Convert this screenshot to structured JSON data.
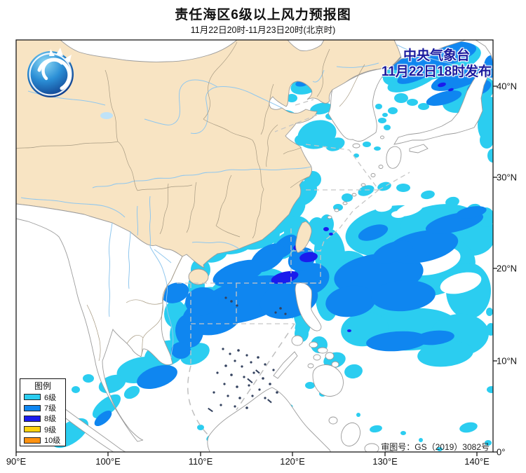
{
  "header": {
    "title": "责任海区6级以上风力预报图",
    "subtitle": "11月22日20时-11月23日20时(北京时)"
  },
  "publisher": {
    "line1": "中央气象台",
    "line2": "11月22日18时发布",
    "color": "#1b1b9e"
  },
  "legend": {
    "title": "图例",
    "items": [
      {
        "label": "6级",
        "color": "#2bcdf0"
      },
      {
        "label": "7级",
        "color": "#0f86f0"
      },
      {
        "label": "8级",
        "color": "#1a1ced"
      },
      {
        "label": "9级",
        "color": "#ffd20f"
      },
      {
        "label": "10级",
        "color": "#ff920f"
      }
    ]
  },
  "map_note": "审图号：GS（2019）3082号",
  "axes": {
    "bottom": [
      "90°E",
      "100°E",
      "110°E",
      "120°E",
      "130°E",
      "140°E"
    ],
    "right": [
      "40°N",
      "30°N",
      "20°N",
      "10°N",
      "0°"
    ]
  },
  "colors": {
    "land": "#f8e4c3",
    "sea": "#ffffff",
    "coastline": "#9b9b9b",
    "province_border": "#a79a82",
    "river": "#90c7ee",
    "zone_dash": "#c6c6c6",
    "reef_dot": "#33415e",
    "wind6": "#2bcdf0",
    "wind7": "#0f86f0",
    "wind8": "#1a1ced"
  }
}
